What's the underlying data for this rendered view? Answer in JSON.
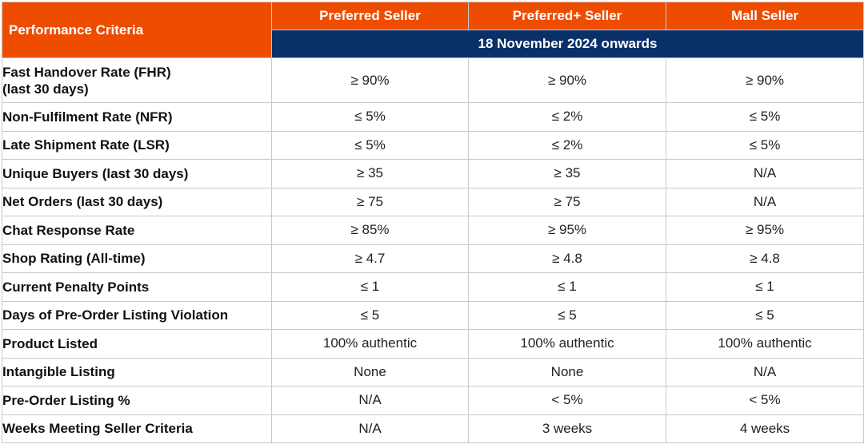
{
  "header": {
    "criteria_label": "Performance Criteria",
    "columns": [
      "Preferred Seller",
      "Preferred+ Seller",
      "Mall Seller"
    ],
    "date_banner": "18 November 2024 onwards"
  },
  "colors": {
    "header_orange": "#ee4d00",
    "banner_navy": "#0a3068",
    "border_gray": "#c9c9c9"
  },
  "rows": [
    {
      "criterion": "Fast Handover Rate (FHR)\n(last 30 days)",
      "values": [
        "≥ 90%",
        "≥ 90%",
        "≥ 90%"
      ]
    },
    {
      "criterion": "Non-Fulfilment Rate (NFR)",
      "values": [
        "≤ 5%",
        "≤ 2%",
        "≤ 5%"
      ]
    },
    {
      "criterion": "Late Shipment Rate (LSR)",
      "values": [
        "≤ 5%",
        "≤ 2%",
        "≤ 5%"
      ]
    },
    {
      "criterion": "Unique Buyers (last 30 days)",
      "values": [
        "≥ 35",
        "≥ 35",
        "N/A"
      ]
    },
    {
      "criterion": "Net Orders (last 30 days)",
      "values": [
        "≥ 75",
        "≥ 75",
        "N/A"
      ]
    },
    {
      "criterion": "Chat Response Rate",
      "values": [
        "≥ 85%",
        "≥ 95%",
        "≥ 95%"
      ]
    },
    {
      "criterion": "Shop Rating (All-time)",
      "values": [
        "≥ 4.7",
        "≥ 4.8",
        "≥ 4.8"
      ]
    },
    {
      "criterion": "Current Penalty Points",
      "values": [
        "≤ 1",
        "≤ 1",
        "≤ 1"
      ]
    },
    {
      "criterion": "Days of Pre-Order Listing Violation",
      "values": [
        "≤ 5",
        "≤ 5",
        "≤ 5"
      ]
    },
    {
      "criterion": "Product Listed",
      "values": [
        "100% authentic",
        "100% authentic",
        "100% authentic"
      ]
    },
    {
      "criterion": "Intangible Listing",
      "values": [
        "None",
        "None",
        "N/A"
      ]
    },
    {
      "criterion": "Pre-Order Listing %",
      "values": [
        "N/A",
        "< 5%",
        "< 5%"
      ]
    },
    {
      "criterion": "Weeks Meeting Seller Criteria",
      "values": [
        "N/A",
        "3 weeks",
        "4 weeks"
      ]
    }
  ]
}
